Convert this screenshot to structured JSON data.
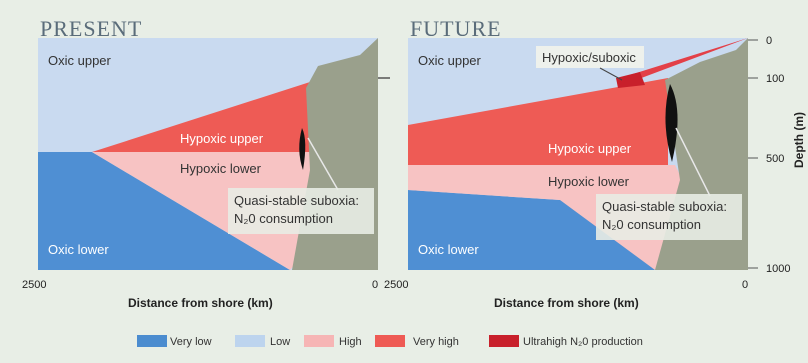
{
  "panels": [
    {
      "title": "Present",
      "zones": {
        "oxic_upper": "Oxic upper",
        "hypoxic_upper": "Hypoxic upper",
        "hypoxic_lower": "Hypoxic lower",
        "suboxia_line1": "Quasi-stable suboxia:",
        "suboxia_line2": "N₂0 consumption",
        "oxic_lower": "Oxic lower"
      },
      "x_axis": {
        "left": "2500",
        "right": "0",
        "title": "Distance from shore (km)"
      }
    },
    {
      "title": "Future",
      "zones": {
        "oxic_upper": "Oxic upper",
        "hypoxic_suboxic": "Hypoxic/suboxic",
        "hypoxic_upper": "Hypoxic upper",
        "hypoxic_lower": "Hypoxic lower",
        "suboxia_line1": "Quasi-stable suboxia:",
        "suboxia_line2": "N₂0 consumption",
        "oxic_lower": "Oxic lower"
      },
      "x_axis": {
        "left": "2500",
        "right": "0",
        "title": "Distance from shore (km)"
      }
    }
  ],
  "depth_axis": {
    "title": "Depth (m)",
    "ticks": [
      "0",
      "100",
      "500",
      "1000"
    ]
  },
  "legend": [
    {
      "label": "Very low",
      "color": "#4b8ccf"
    },
    {
      "label": "Low",
      "color": "#bdd4ee"
    },
    {
      "label": "High",
      "color": "#f6b5b5"
    },
    {
      "label": "Very high",
      "color": "#ee5a54"
    },
    {
      "label": "Ultrahigh N₂0 production",
      "color": "#c8202b"
    }
  ]
}
